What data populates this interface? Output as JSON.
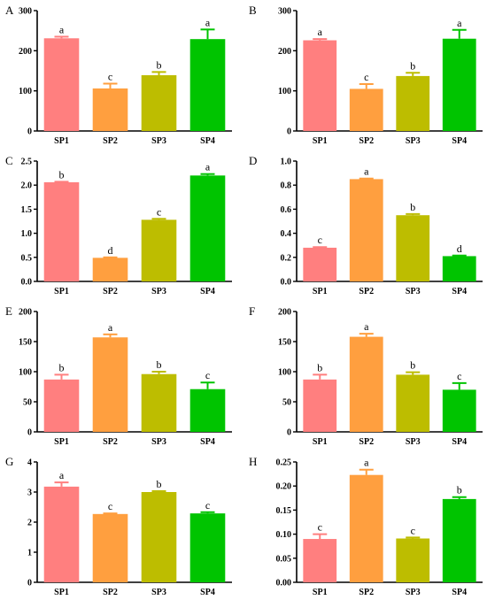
{
  "chart_data": [
    {
      "type": "bar",
      "panel": "A",
      "categories": [
        "SP1",
        "SP2",
        "SP3",
        "SP4"
      ],
      "values": [
        231,
        106,
        139,
        229
      ],
      "errors": [
        4,
        12,
        8,
        24
      ],
      "letters": [
        "a",
        "c",
        "b",
        "a"
      ],
      "ylim": [
        0,
        300
      ],
      "yticks": [
        "0",
        "100",
        "200",
        "300"
      ],
      "colors": [
        "#ff7f7f",
        "#ff9f3f",
        "#bdbd00",
        "#00c400"
      ]
    },
    {
      "type": "bar",
      "panel": "B",
      "categories": [
        "SP1",
        "SP2",
        "SP3",
        "SP4"
      ],
      "values": [
        226,
        105,
        137,
        230
      ],
      "errors": [
        3,
        12,
        8,
        22
      ],
      "letters": [
        "a",
        "c",
        "b",
        "a"
      ],
      "ylim": [
        0,
        300
      ],
      "yticks": [
        "0",
        "100",
        "200",
        "300"
      ],
      "colors": [
        "#ff7f7f",
        "#ff9f3f",
        "#bdbd00",
        "#00c400"
      ]
    },
    {
      "type": "bar",
      "panel": "C",
      "categories": [
        "SP1",
        "SP2",
        "SP3",
        "SP4"
      ],
      "values": [
        2.06,
        0.49,
        1.28,
        2.2
      ],
      "errors": [
        0.01,
        0.01,
        0.02,
        0.03
      ],
      "letters": [
        "b",
        "d",
        "c",
        "a"
      ],
      "ylim": [
        0,
        2.5
      ],
      "yticks": [
        "0.0",
        "0.5",
        "1.0",
        "1.5",
        "2.0",
        "2.5"
      ],
      "colors": [
        "#ff7f7f",
        "#ff9f3f",
        "#bdbd00",
        "#00c400"
      ]
    },
    {
      "type": "bar",
      "panel": "D",
      "categories": [
        "SP1",
        "SP2",
        "SP3",
        "SP4"
      ],
      "values": [
        0.28,
        0.85,
        0.55,
        0.21
      ],
      "errors": [
        0.005,
        0.005,
        0.01,
        0.005
      ],
      "letters": [
        "c",
        "a",
        "b",
        "d"
      ],
      "ylim": [
        0,
        1.0
      ],
      "yticks": [
        "0.0",
        "0.2",
        "0.4",
        "0.6",
        "0.8",
        "1.0"
      ],
      "colors": [
        "#ff7f7f",
        "#ff9f3f",
        "#bdbd00",
        "#00c400"
      ]
    },
    {
      "type": "bar",
      "panel": "E",
      "categories": [
        "SP1",
        "SP2",
        "SP3",
        "SP4"
      ],
      "values": [
        87,
        157,
        96,
        71
      ],
      "errors": [
        8,
        5,
        4,
        11
      ],
      "letters": [
        "b",
        "a",
        "b",
        "c"
      ],
      "ylim": [
        0,
        200
      ],
      "yticks": [
        "0",
        "50",
        "100",
        "150",
        "200"
      ],
      "colors": [
        "#ff7f7f",
        "#ff9f3f",
        "#bdbd00",
        "#00c400"
      ]
    },
    {
      "type": "bar",
      "panel": "F",
      "categories": [
        "SP1",
        "SP2",
        "SP3",
        "SP4"
      ],
      "values": [
        87,
        158,
        95,
        70
      ],
      "errors": [
        8,
        5,
        4,
        11
      ],
      "letters": [
        "b",
        "a",
        "b",
        "c"
      ],
      "ylim": [
        0,
        200
      ],
      "yticks": [
        "0",
        "50",
        "100",
        "150",
        "200"
      ],
      "colors": [
        "#ff7f7f",
        "#ff9f3f",
        "#bdbd00",
        "#00c400"
      ]
    },
    {
      "type": "bar",
      "panel": "G",
      "categories": [
        "SP1",
        "SP2",
        "SP3",
        "SP4"
      ],
      "values": [
        3.18,
        2.27,
        3.0,
        2.29
      ],
      "errors": [
        0.14,
        0.02,
        0.03,
        0.04
      ],
      "letters": [
        "a",
        "c",
        "b",
        "c"
      ],
      "ylim": [
        0,
        4
      ],
      "yticks": [
        "0",
        "1",
        "2",
        "3",
        "4"
      ],
      "colors": [
        "#ff7f7f",
        "#ff9f3f",
        "#bdbd00",
        "#00c400"
      ]
    },
    {
      "type": "bar",
      "panel": "H",
      "categories": [
        "SP1",
        "SP2",
        "SP3",
        "SP4"
      ],
      "values": [
        0.09,
        0.223,
        0.091,
        0.173
      ],
      "errors": [
        0.01,
        0.011,
        0.002,
        0.004
      ],
      "letters": [
        "c",
        "a",
        "c",
        "b"
      ],
      "ylim": [
        0,
        0.25
      ],
      "yticks": [
        "0.00",
        "0.05",
        "0.10",
        "0.15",
        "0.20",
        "0.25"
      ],
      "colors": [
        "#ff7f7f",
        "#ff9f3f",
        "#bdbd00",
        "#00c400"
      ]
    }
  ]
}
